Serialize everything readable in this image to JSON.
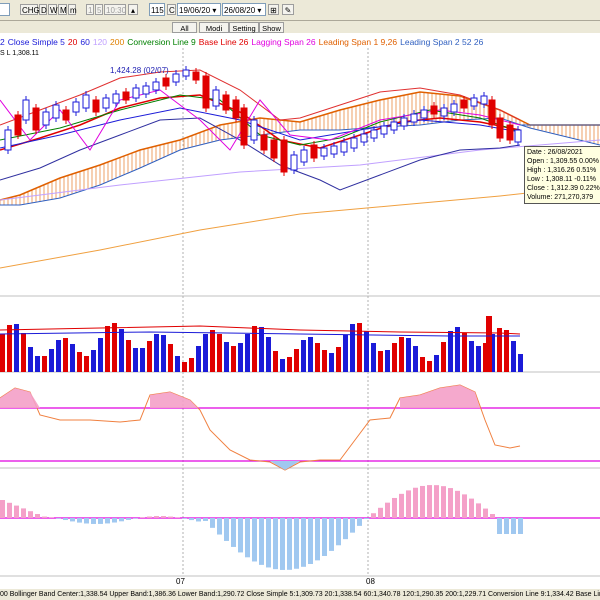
{
  "toolbar": {
    "dropdown1": "",
    "chg_label": "CHG",
    "period_d": "D",
    "period_w": "W",
    "period_m": "M",
    "period_m2": "m",
    "btn_1": "1",
    "btn_5": "5",
    "btn_1030": "10:30",
    "bar_count": "115",
    "c_label": "C",
    "start_date": "19/06/20",
    "end_date": "26/08/20",
    "btn_all": "All",
    "btn_modi": "Modi",
    "btn_setting": "Setting",
    "btn_show": "Show"
  },
  "legend": [
    {
      "text": "2",
      "color": "#1b1bd8"
    },
    {
      "text": "Close Simple 5",
      "color": "#1b1bd8"
    },
    {
      "text": "20",
      "color": "#e00000"
    },
    {
      "text": "60",
      "color": "#1b1bd8"
    },
    {
      "text": "120",
      "color": "#c0a0ff"
    },
    {
      "text": "200",
      "color": "#e08000"
    },
    {
      "text": "Conversion Line 9",
      "color": "#008000"
    },
    {
      "text": "Base Line 26",
      "color": "#e00000"
    },
    {
      "text": "Lagging Span 26",
      "color": "#e000e0"
    },
    {
      "text": "Leading Span 1 9,26",
      "color": "#e06000"
    },
    {
      "text": "Leading Span 2 52 26",
      "color": "#3060c0"
    }
  ],
  "cursor_readout": "S L 1,308.11",
  "high_label": "1,424.28 (02/07)",
  "tooltip": {
    "date": "Date : 26/08/2021",
    "open": "Open  : 1,309.55  0.00%",
    "high": "High  : 1,316.26  0.51%",
    "low": "Low   : 1,308.11  -0.11%",
    "close": "Close : 1,312.39  0.22%",
    "volume": "Volume: 271,270,379"
  },
  "x_labels": [
    "07",
    "08"
  ],
  "status_text": "00 Bollinger Band Center:1,338.54  Upper Band:1,386.36  Lower Band:1,290.72  Close Simple 5:1,309.73  20:1,338.54  60:1,340.78  120:1,290.35  200:1,229.71  Conversion Line 9:1,334.42  Base Line",
  "colors": {
    "up": "#e00000",
    "down": "#1b1bd8",
    "macd_pos": "#f4a0c8",
    "macd_neg": "#a0c8f0",
    "cloud": "#e06000",
    "cloud2": "#3060c0"
  }
}
